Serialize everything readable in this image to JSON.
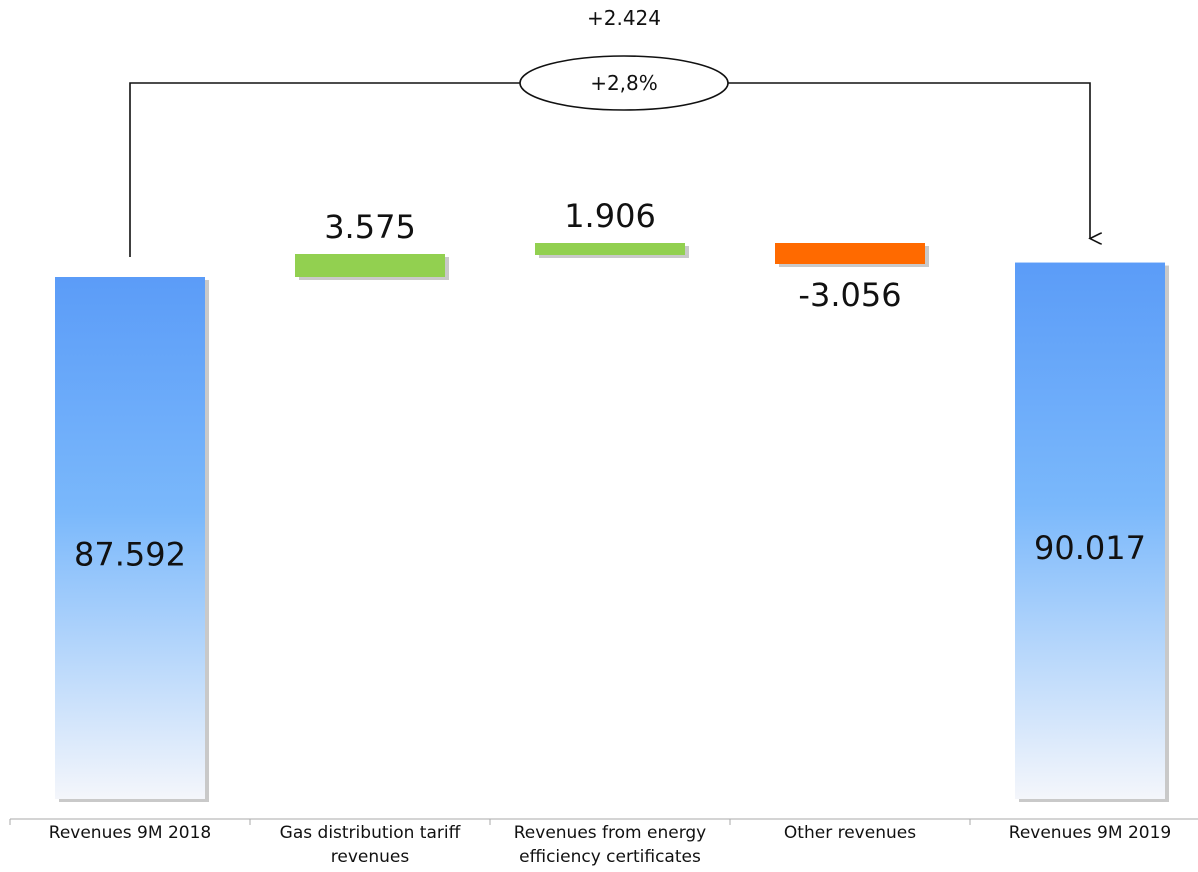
{
  "chart_data": {
    "type": "bar",
    "subtype": "waterfall",
    "categories": [
      "Revenues 9M 2018",
      "Gas distribution tariff revenues",
      "Revenues from energy efficiency certificates",
      "Other revenues",
      "Revenues 9M 2019"
    ],
    "category_lines": [
      [
        "Revenues 9M 2018"
      ],
      [
        "Gas distribution tariff",
        "revenues"
      ],
      [
        "Revenues from energy",
        "efficiency certificates"
      ],
      [
        "Other revenues"
      ],
      [
        "Revenues 9M 2019"
      ]
    ],
    "values": [
      87592,
      3575,
      1906,
      -3056,
      90017
    ],
    "value_labels": [
      "87.592",
      "3.575",
      "1.906",
      "-3.056",
      "90.017"
    ],
    "bar_roles": [
      "total",
      "increase",
      "increase",
      "decrease",
      "total"
    ],
    "change_label": "+2.424",
    "change_percent_label": "+2,8%",
    "colors": {
      "total_top": "#5b9cf8",
      "total_mid": "#7ab8fb",
      "total_bottom": "#f4f6fb",
      "increase": "#92d050",
      "decrease": "#ff6a00",
      "axis": "#aaaaaa",
      "text": "#111111"
    },
    "xlabel": "",
    "ylabel": "",
    "grid": false,
    "legend": "none"
  }
}
